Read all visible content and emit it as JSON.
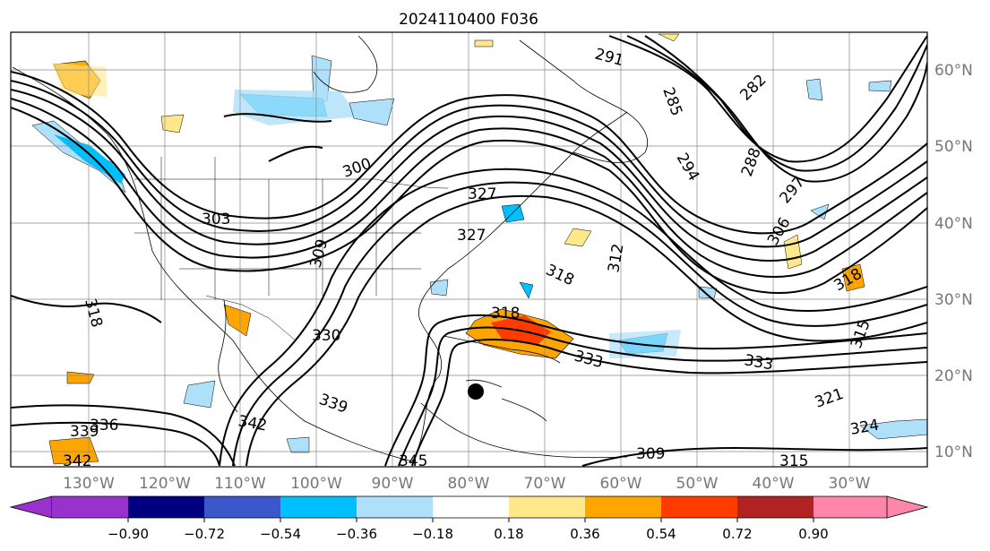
{
  "title": "2024110400 F036",
  "lon_labels": [
    "130°W",
    "120°W",
    "110°W",
    "100°W",
    "90°W",
    "80°W",
    "70°W",
    "60°W",
    "50°W",
    "40°W",
    "30°W"
  ],
  "lat_labels": [
    "60°N",
    "50°N",
    "40°N",
    "30°N",
    "20°N",
    "10°N"
  ],
  "contour_labels": [
    "291",
    "285",
    "282",
    "294",
    "288",
    "297",
    "306",
    "312",
    "309",
    "303",
    "300",
    "315",
    "318",
    "318",
    "321",
    "324",
    "327",
    "327",
    "330",
    "333",
    "333",
    "336",
    "339",
    "339",
    "342",
    "342",
    "345",
    "309",
    "315",
    "318",
    "318"
  ],
  "colorbar": {
    "ticks": [
      "−0.90",
      "−0.72",
      "−0.54",
      "−0.36",
      "−0.18",
      "0.18",
      "0.36",
      "0.54",
      "0.72",
      "0.90"
    ],
    "colors": [
      "#9932cc",
      "#000080",
      "#3a57cc",
      "#00bfff",
      "#aee0fa",
      "#ffffff",
      "#ffe88a",
      "#ffa500",
      "#ff3c00",
      "#b22222",
      "#ff85aa"
    ]
  },
  "colors": {
    "positive_fill": "#ffa500",
    "strong_fill": "#ff3c00",
    "light_pos": "#ffe88a",
    "neg_light": "#aee0fa",
    "neg": "#00bfff",
    "marker": "#000000"
  }
}
